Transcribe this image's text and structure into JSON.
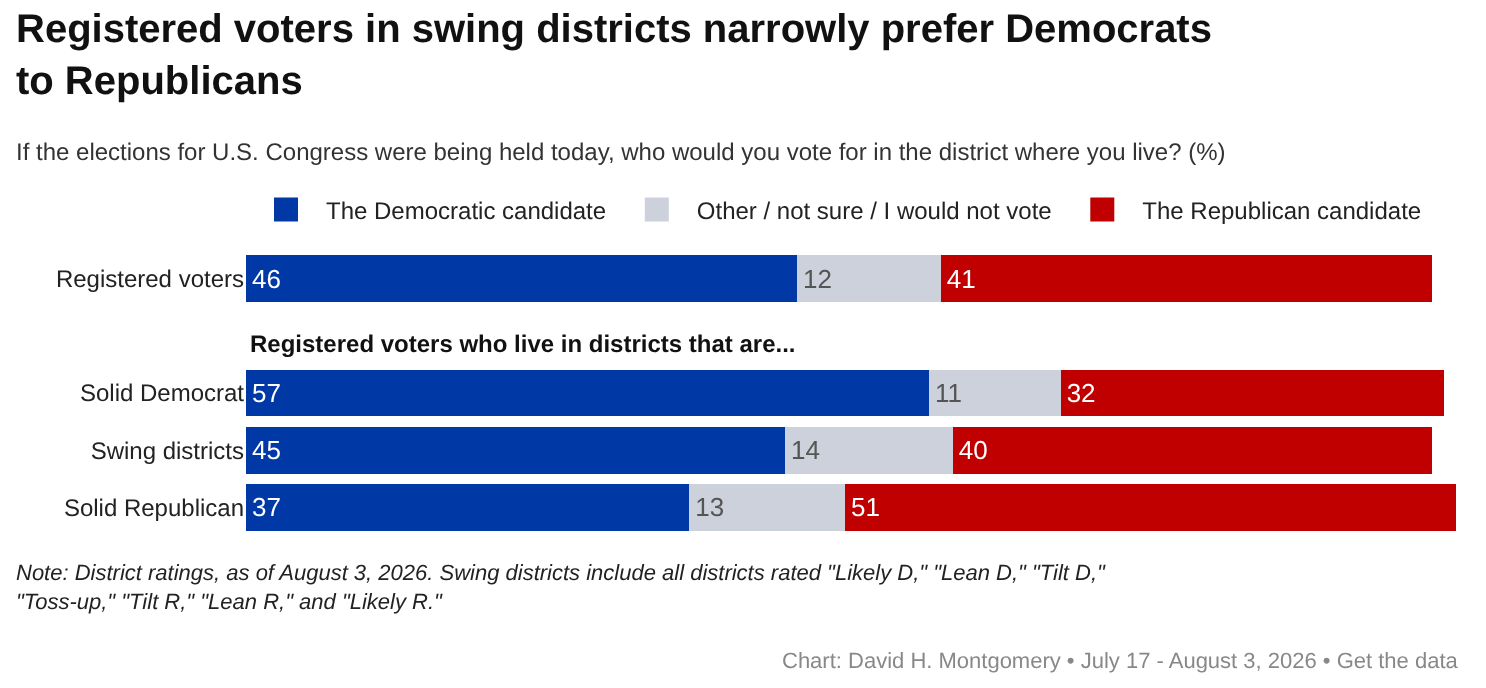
{
  "chart_data": {
    "type": "bar",
    "orientation": "horizontal",
    "stacked": true,
    "title": "Registered voters in swing districts narrowly prefer Democrats to Republicans",
    "subtitle": "If the elections for U.S. Congress were being held today, who would you vote for in the district where you live? (%)",
    "categories": [
      "Registered voters",
      null,
      "Solid Democrat",
      "Swing districts",
      "Solid Republican"
    ],
    "series": [
      {
        "name": "The Democratic candidate",
        "color": "#0039a6",
        "values": [
          46,
          null,
          57,
          45,
          37
        ]
      },
      {
        "name": "Other / not sure / I would not vote",
        "color": "#cdd1db",
        "values": [
          12,
          null,
          11,
          14,
          13
        ]
      },
      {
        "name": "The Republican candidate",
        "color": "#c00000",
        "values": [
          41,
          null,
          32,
          40,
          51
        ]
      }
    ],
    "xlim": [
      0,
      101
    ],
    "data_labels": true,
    "legend": "top",
    "tick_labels": "y",
    "annotations": [
      "Registered voters who live in districts that are...",
      "Note: District ratings, as of August 3, 2026. Swing districts include all districts rated \"Likely D,\" \"Lean D,\" \"Tilt D,\" \"Toss-up,\" \"Tilt R,\" \"Lean R,\" and \"Likely R.\"",
      "Chart: David H. Montgomery • July 17 - August 3, 2026 • Get the data"
    ]
  }
}
